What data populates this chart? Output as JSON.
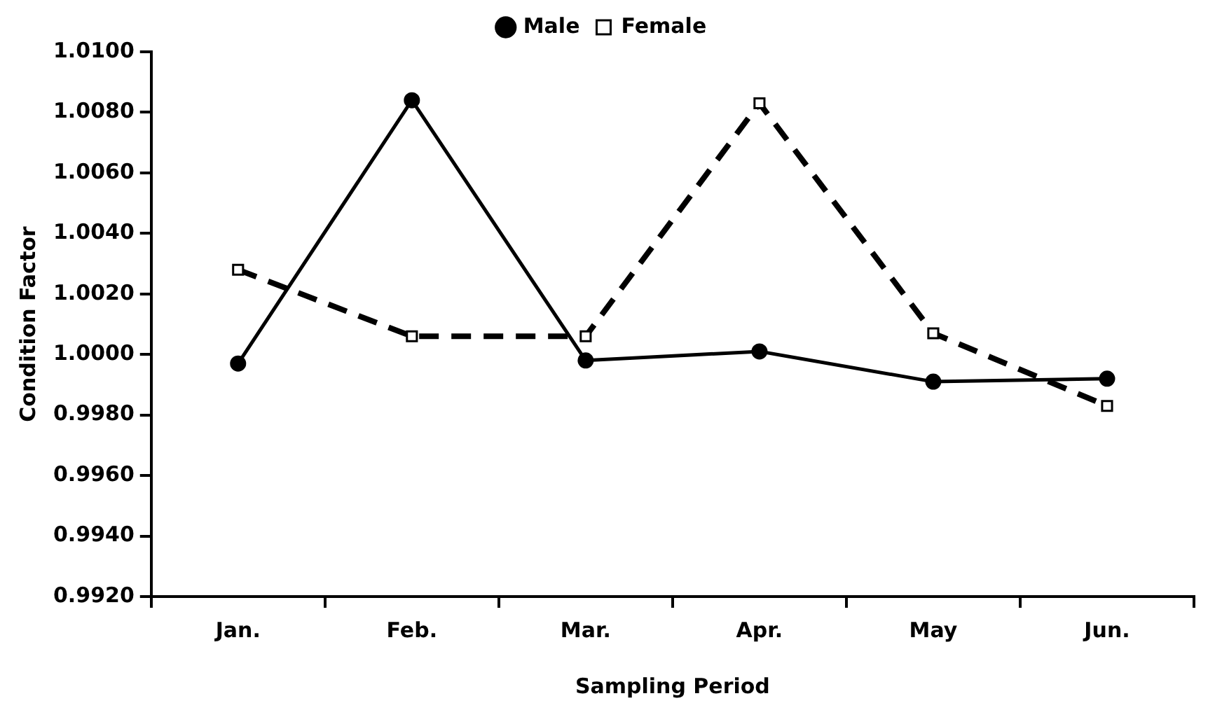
{
  "chart_data": {
    "type": "line",
    "xlabel": "Sampling Period",
    "ylabel": "Condition Factor",
    "categories": [
      "Jan.",
      "Feb.",
      "Mar.",
      "Apr.",
      "May",
      "Jun."
    ],
    "series": [
      {
        "name": "Male",
        "color": "#000000",
        "values": [
          0.9997,
          1.0084,
          0.9998,
          1.0001,
          0.9991,
          0.9992
        ],
        "marker": "circle",
        "line_style": "solid"
      },
      {
        "name": "Female",
        "color": "#000000",
        "values": [
          1.0028,
          1.0006,
          1.0006,
          1.0083,
          1.0007,
          0.9983
        ],
        "marker": "square",
        "line_style": "dashed"
      }
    ],
    "ylim": [
      0.992,
      1.01
    ],
    "yticks": [
      {
        "value": 0.992,
        "label": "0.9920"
      },
      {
        "value": 0.994,
        "label": "0.9940"
      },
      {
        "value": 0.996,
        "label": "0.9960"
      },
      {
        "value": 0.998,
        "label": "0.9980"
      },
      {
        "value": 1.0,
        "label": "1.0000"
      },
      {
        "value": 1.002,
        "label": "1.0020"
      },
      {
        "value": 1.004,
        "label": "1.0040"
      },
      {
        "value": 1.006,
        "label": "1.0060"
      },
      {
        "value": 1.008,
        "label": "1.0080"
      },
      {
        "value": 1.01,
        "label": "1.0100"
      }
    ],
    "grid": false,
    "legend": "top"
  }
}
